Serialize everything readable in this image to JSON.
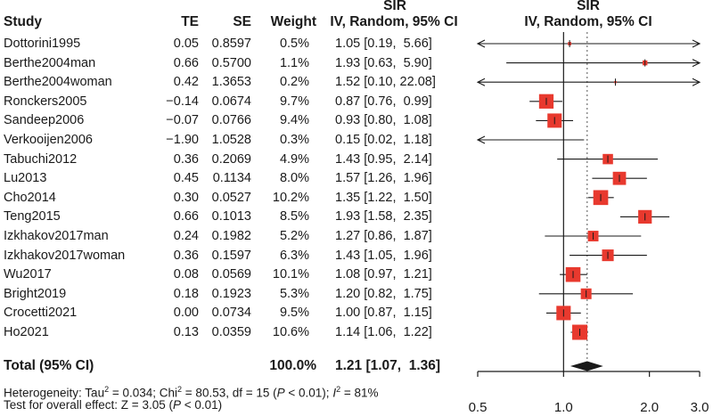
{
  "header": {
    "study": "Study",
    "te": "TE",
    "se": "SE",
    "weight": "Weight",
    "sir_top": "SIR",
    "sir_sub": "IV, Random, 95% CI",
    "plot_top": "SIR",
    "plot_sub": "IV, Random, 95% CI"
  },
  "studies": [
    {
      "name": "Dottorini1995",
      "te": "0.05",
      "se": "0.8597",
      "weight": "0.5%",
      "ci": "1.05 [0.19,  5.66]"
    },
    {
      "name": "Berthe2004man",
      "te": "0.66",
      "se": "0.5700",
      "weight": "1.1%",
      "ci": "1.93 [0.63,  5.90]"
    },
    {
      "name": "Berthe2004woman",
      "te": "0.42",
      "se": "1.3653",
      "weight": "0.2%",
      "ci": "1.52 [0.10, 22.08]"
    },
    {
      "name": "Ronckers2005",
      "te": "−0.14",
      "se": "0.0674",
      "weight": "9.7%",
      "ci": "0.87 [0.76,  0.99]"
    },
    {
      "name": "Sandeep2006",
      "te": "−0.07",
      "se": "0.0766",
      "weight": "9.4%",
      "ci": "0.93 [0.80,  1.08]"
    },
    {
      "name": "Verkooijen2006",
      "te": "−1.90",
      "se": "1.0528",
      "weight": "0.3%",
      "ci": "0.15 [0.02,  1.18]"
    },
    {
      "name": "Tabuchi2012",
      "te": "0.36",
      "se": "0.2069",
      "weight": "4.9%",
      "ci": "1.43 [0.95,  2.14]"
    },
    {
      "name": "Lu2013",
      "te": "0.45",
      "se": "0.1134",
      "weight": "8.0%",
      "ci": "1.57 [1.26,  1.96]"
    },
    {
      "name": "Cho2014",
      "te": "0.30",
      "se": "0.0527",
      "weight": "10.2%",
      "ci": "1.35 [1.22,  1.50]"
    },
    {
      "name": "Teng2015",
      "te": "0.66",
      "se": "0.1013",
      "weight": "8.5%",
      "ci": "1.93 [1.58,  2.35]"
    },
    {
      "name": "Izkhakov2017man",
      "te": "0.24",
      "se": "0.1982",
      "weight": "5.2%",
      "ci": "1.27 [0.86,  1.87]"
    },
    {
      "name": "Izkhakov2017woman",
      "te": "0.36",
      "se": "0.1597",
      "weight": "6.3%",
      "ci": "1.43 [1.05,  1.96]"
    },
    {
      "name": "Wu2017",
      "te": "0.08",
      "se": "0.0569",
      "weight": "10.1%",
      "ci": "1.08 [0.97,  1.21]"
    },
    {
      "name": "Bright2019",
      "te": "0.18",
      "se": "0.1923",
      "weight": "5.3%",
      "ci": "1.20 [0.82,  1.75]"
    },
    {
      "name": "Crocetti2021",
      "te": "0.00",
      "se": "0.0734",
      "weight": "9.5%",
      "ci": "1.00 [0.87,  1.15]"
    },
    {
      "name": "Ho2021",
      "te": "0.13",
      "se": "0.0359",
      "weight": "10.6%",
      "ci": "1.14 [1.06,  1.22]"
    }
  ],
  "total": {
    "label": "Total (95% CI)",
    "weight": "100.0%",
    "ci": "1.21 [1.07,  1.36]"
  },
  "stats": {
    "heterogeneity": {
      "prefix": "Heterogeneity: Tau",
      "tau_sup": "2",
      "tau_val": " = 0.034; Chi",
      "chi_sup": "2",
      "chi_val": " = 80.53, df = 15 (",
      "p_italic": "P",
      "p_val": " < 0.01); ",
      "i_italic": "I",
      "i_sup": "2",
      "i_val": " = 81%"
    },
    "overall": {
      "prefix": "Test for overall effect: Z = 3.05 (",
      "p_italic": "P",
      "p_val": " < 0.01)"
    }
  },
  "chart_data": {
    "type": "forest",
    "scale": "log",
    "xlim": [
      0.5,
      3.0
    ],
    "ticks": [
      0.5,
      1.0,
      2.0,
      3.0
    ],
    "tick_labels": [
      "0.5",
      "1.0",
      "2.0",
      "3.0"
    ],
    "null_line": 1.0,
    "pooled_line": 1.21,
    "series": [
      {
        "name": "Dottorini1995",
        "est": 1.05,
        "lo": 0.19,
        "hi": 5.66,
        "weight": 0.5
      },
      {
        "name": "Berthe2004man",
        "est": 1.93,
        "lo": 0.63,
        "hi": 5.9,
        "weight": 1.1
      },
      {
        "name": "Berthe2004woman",
        "est": 1.52,
        "lo": 0.1,
        "hi": 22.08,
        "weight": 0.2
      },
      {
        "name": "Ronckers2005",
        "est": 0.87,
        "lo": 0.76,
        "hi": 0.99,
        "weight": 9.7
      },
      {
        "name": "Sandeep2006",
        "est": 0.93,
        "lo": 0.8,
        "hi": 1.08,
        "weight": 9.4
      },
      {
        "name": "Verkooijen2006",
        "est": 0.15,
        "lo": 0.02,
        "hi": 1.18,
        "weight": 0.3
      },
      {
        "name": "Tabuchi2012",
        "est": 1.43,
        "lo": 0.95,
        "hi": 2.14,
        "weight": 4.9
      },
      {
        "name": "Lu2013",
        "est": 1.57,
        "lo": 1.26,
        "hi": 1.96,
        "weight": 8.0
      },
      {
        "name": "Cho2014",
        "est": 1.35,
        "lo": 1.22,
        "hi": 1.5,
        "weight": 10.2
      },
      {
        "name": "Teng2015",
        "est": 1.93,
        "lo": 1.58,
        "hi": 2.35,
        "weight": 8.5
      },
      {
        "name": "Izkhakov2017man",
        "est": 1.27,
        "lo": 0.86,
        "hi": 1.87,
        "weight": 5.2
      },
      {
        "name": "Izkhakov2017woman",
        "est": 1.43,
        "lo": 1.05,
        "hi": 1.96,
        "weight": 6.3
      },
      {
        "name": "Wu2017",
        "est": 1.08,
        "lo": 0.97,
        "hi": 1.21,
        "weight": 10.1
      },
      {
        "name": "Bright2019",
        "est": 1.2,
        "lo": 0.82,
        "hi": 1.75,
        "weight": 5.3
      },
      {
        "name": "Crocetti2021",
        "est": 1.0,
        "lo": 0.87,
        "hi": 1.15,
        "weight": 9.5
      },
      {
        "name": "Ho2021",
        "est": 1.14,
        "lo": 1.06,
        "hi": 1.22,
        "weight": 10.6
      }
    ],
    "pooled": {
      "est": 1.21,
      "lo": 1.07,
      "hi": 1.36
    },
    "colors": {
      "box": "#e8392e",
      "line": "#1a1a1a",
      "diamond": "#1a1a1a",
      "ref": "#555555"
    }
  }
}
